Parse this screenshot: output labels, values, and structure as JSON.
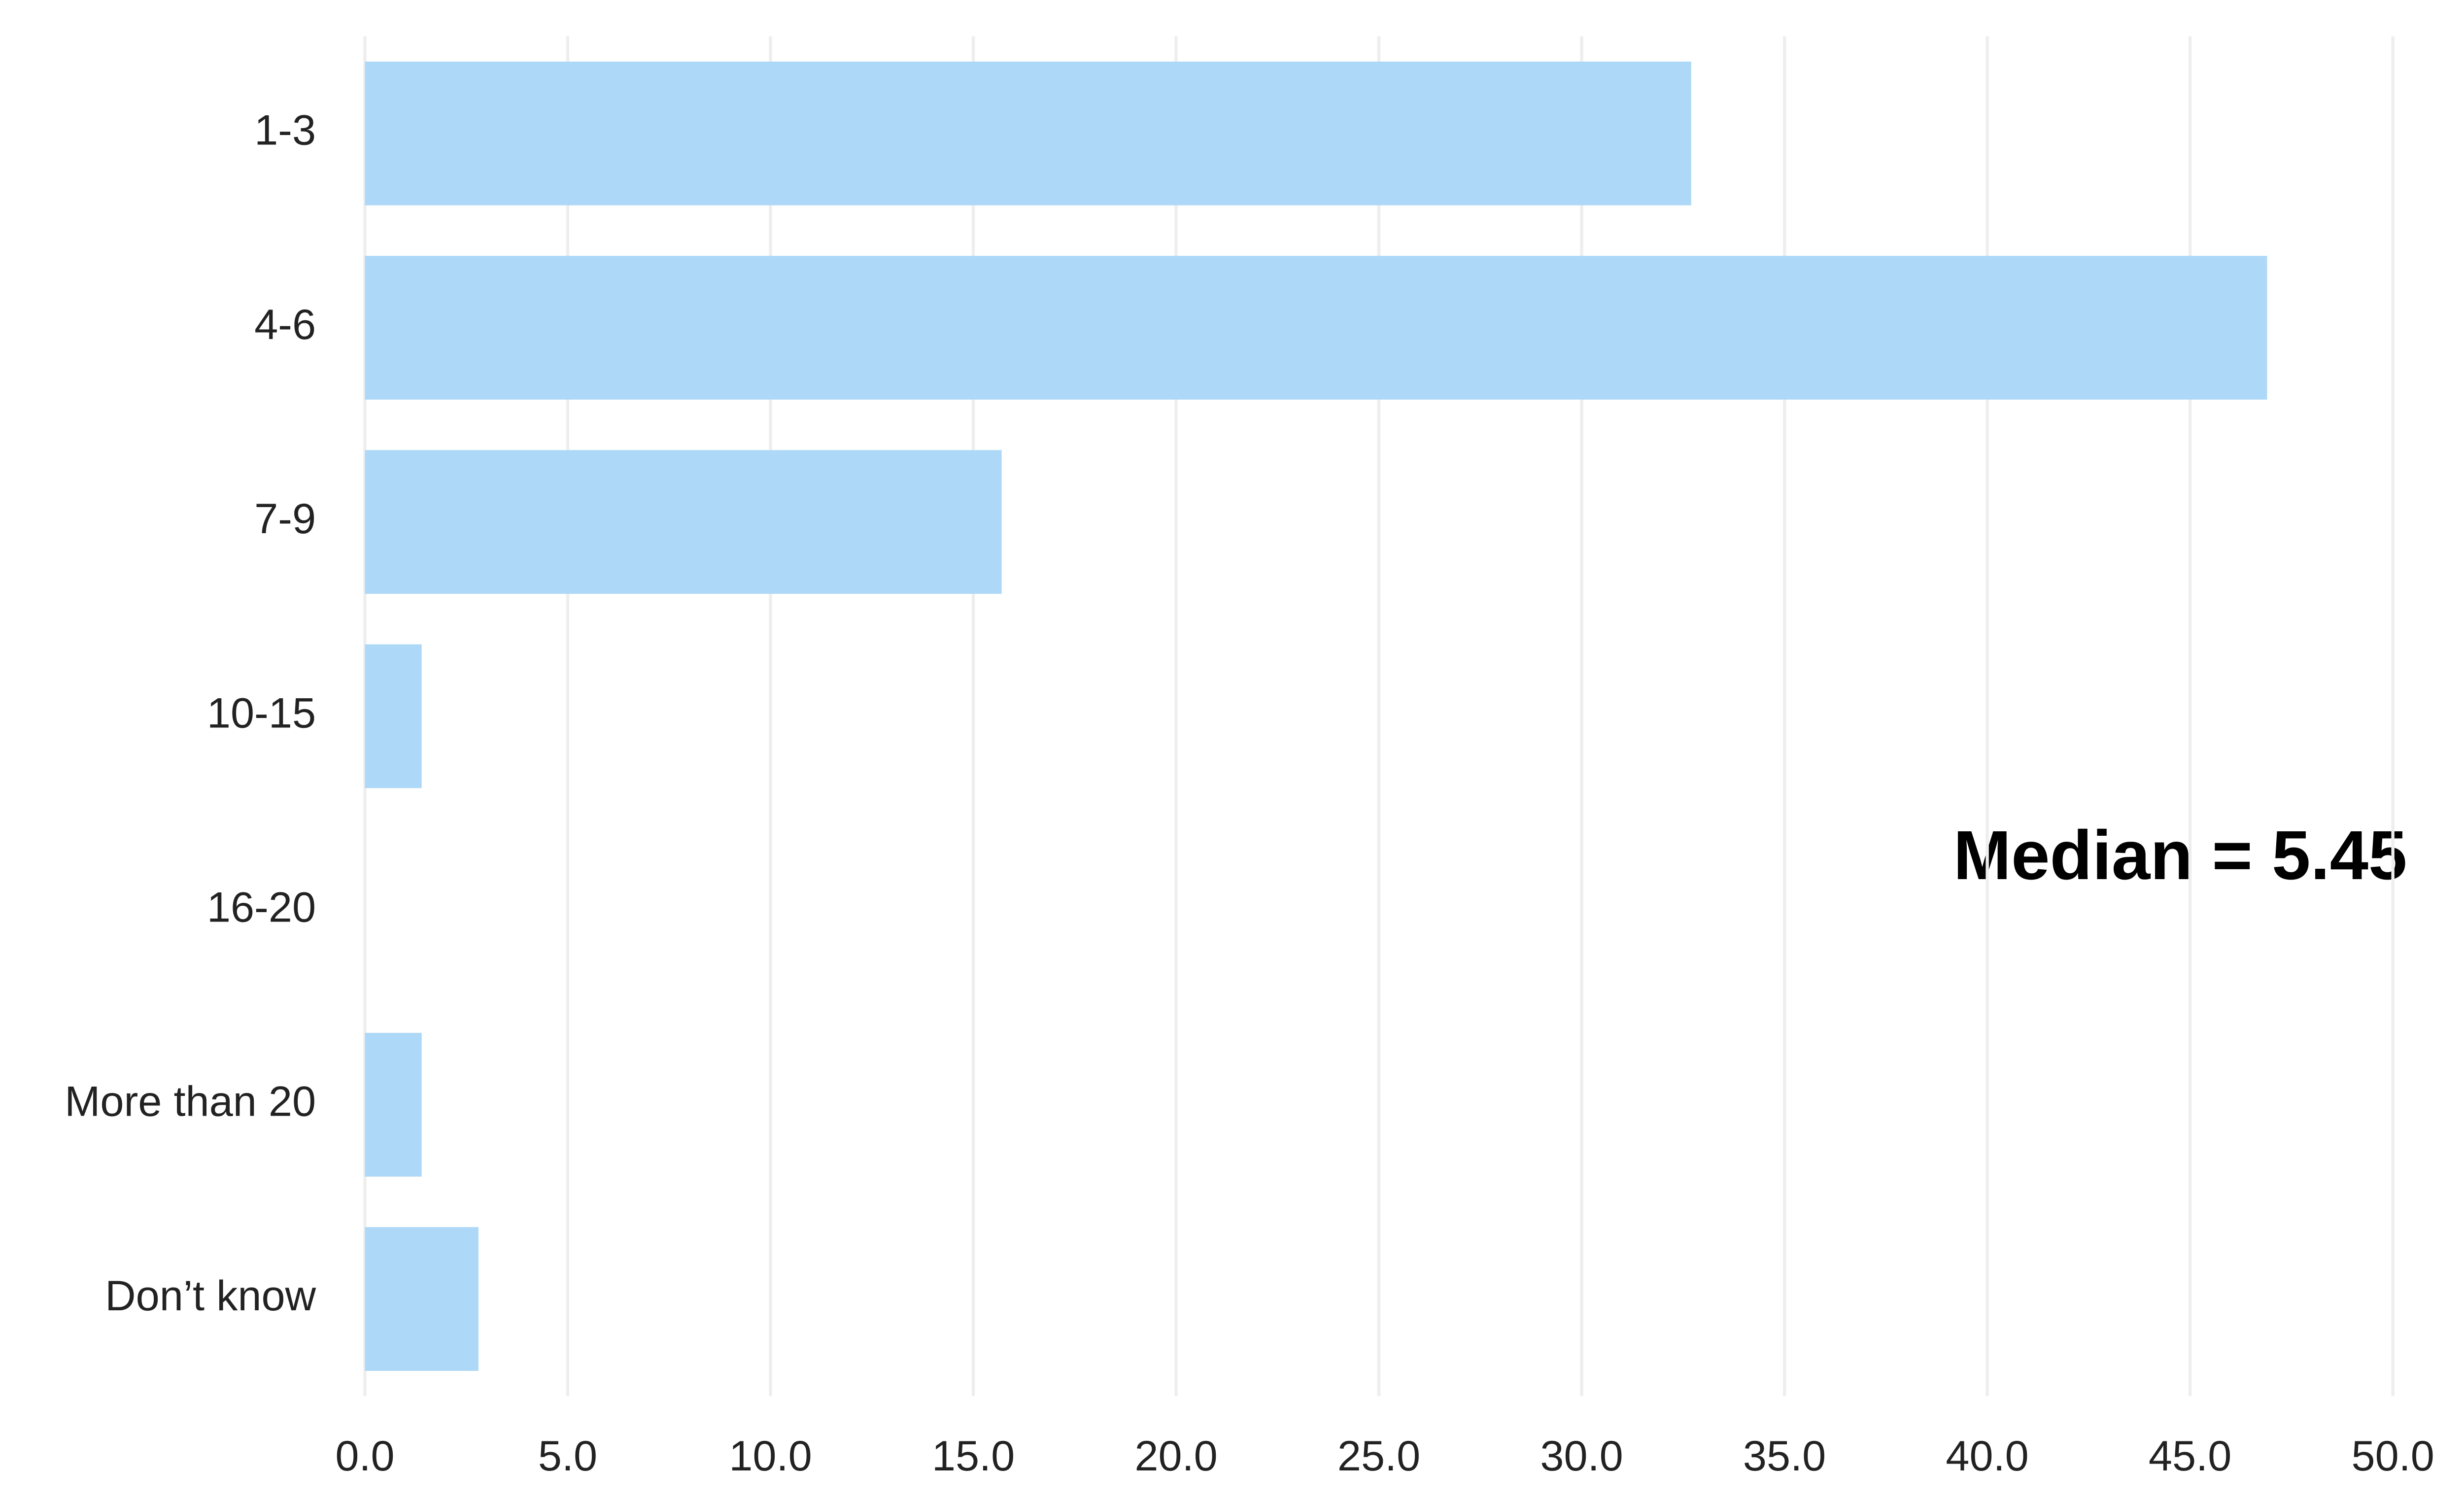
{
  "chart_data": {
    "type": "barh",
    "categories": [
      "1-3",
      "4-6",
      "7-9",
      "10-15",
      "16-20",
      "More than 20",
      "Don’t know"
    ],
    "values": [
      32.7,
      46.9,
      15.7,
      1.4,
      0,
      1.4,
      2.8
    ],
    "color": "#add8f7",
    "xlim": [
      0,
      50
    ],
    "xticks": [
      {
        "value": 0,
        "label": "0.0"
      },
      {
        "value": 5,
        "label": "5.0"
      },
      {
        "value": 10,
        "label": "10.0"
      },
      {
        "value": 15,
        "label": "15.0"
      },
      {
        "value": 20,
        "label": "20.0"
      },
      {
        "value": 25,
        "label": "25.0"
      },
      {
        "value": 30,
        "label": "30.0"
      },
      {
        "value": 35,
        "label": "35.0"
      },
      {
        "value": 40,
        "label": "40.0"
      },
      {
        "value": 45,
        "label": "45.0"
      },
      {
        "value": 50,
        "label": "50.0"
      }
    ],
    "grid": true,
    "annotation": "Median = 5.45"
  }
}
